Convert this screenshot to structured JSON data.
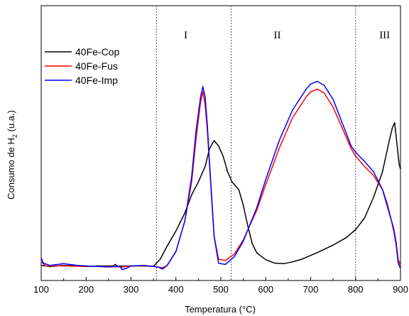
{
  "chart_data": {
    "type": "line",
    "xlabel": "Temperatura (°C)",
    "ylabel": "Consumo de H",
    "ylabel_sub": "2",
    "ylabel_suffix": " (u.a.)",
    "xlim": [
      100,
      900
    ],
    "xticks": [
      100,
      200,
      300,
      400,
      500,
      600,
      700,
      800,
      900
    ],
    "ylim": [
      0,
      100
    ],
    "yticks_labeled": false,
    "grid": false,
    "legend_position": "top-left",
    "regions": [
      {
        "label": "I",
        "x": 440
      },
      {
        "label": "II",
        "x": 640
      },
      {
        "label": "III",
        "x": 875
      }
    ],
    "region_dividers": [
      357,
      523,
      800
    ],
    "series": [
      {
        "name": "40Fe-Cop",
        "color": "#000000",
        "points": [
          [
            100,
            0.6
          ],
          [
            120,
            0.2
          ],
          [
            150,
            0.6
          ],
          [
            180,
            0.4
          ],
          [
            200,
            0.2
          ],
          [
            230,
            0.4
          ],
          [
            260,
            0.4
          ],
          [
            265,
            1.0
          ],
          [
            270,
            0.3
          ],
          [
            300,
            0.4
          ],
          [
            330,
            0.4
          ],
          [
            350,
            0.3
          ],
          [
            365,
            3.0
          ],
          [
            380,
            8.0
          ],
          [
            400,
            14.0
          ],
          [
            420,
            21.0
          ],
          [
            435,
            28.0
          ],
          [
            450,
            33.0
          ],
          [
            465,
            39.0
          ],
          [
            475,
            46.0
          ],
          [
            485,
            49.0
          ],
          [
            495,
            47.0
          ],
          [
            505,
            43.0
          ],
          [
            515,
            37.0
          ],
          [
            525,
            33.0
          ],
          [
            540,
            30.0
          ],
          [
            550,
            24.0
          ],
          [
            560,
            16.0
          ],
          [
            570,
            9.0
          ],
          [
            580,
            5.5
          ],
          [
            600,
            2.8
          ],
          [
            620,
            1.5
          ],
          [
            640,
            1.3
          ],
          [
            660,
            2.0
          ],
          [
            680,
            3.0
          ],
          [
            700,
            4.5
          ],
          [
            720,
            6.0
          ],
          [
            750,
            8.5
          ],
          [
            780,
            11.5
          ],
          [
            800,
            14.5
          ],
          [
            820,
            19.0
          ],
          [
            840,
            27.0
          ],
          [
            860,
            37.0
          ],
          [
            875,
            49.0
          ],
          [
            882,
            54.0
          ],
          [
            887,
            56.0
          ],
          [
            892,
            48.0
          ],
          [
            897,
            40.0
          ],
          [
            900,
            38.0
          ]
        ]
      },
      {
        "name": "40Fe-Fus",
        "color": "#ff0000",
        "points": [
          [
            100,
            2.0
          ],
          [
            110,
            0.5
          ],
          [
            150,
            0.4
          ],
          [
            200,
            0.2
          ],
          [
            250,
            0.2
          ],
          [
            280,
            0.0
          ],
          [
            300,
            0.4
          ],
          [
            330,
            0.4
          ],
          [
            350,
            0.2
          ],
          [
            370,
            -0.3
          ],
          [
            380,
            0.5
          ],
          [
            400,
            6.0
          ],
          [
            420,
            18.0
          ],
          [
            435,
            33.0
          ],
          [
            445,
            50.0
          ],
          [
            455,
            64.0
          ],
          [
            460,
            68.0
          ],
          [
            465,
            63.0
          ],
          [
            470,
            53.0
          ],
          [
            475,
            39.0
          ],
          [
            480,
            25.0
          ],
          [
            485,
            12.0
          ],
          [
            495,
            3.0
          ],
          [
            510,
            2.5
          ],
          [
            530,
            5.0
          ],
          [
            550,
            10.5
          ],
          [
            580,
            22.0
          ],
          [
            600,
            32.0
          ],
          [
            630,
            46.0
          ],
          [
            660,
            58.0
          ],
          [
            690,
            66.0
          ],
          [
            700,
            68.0
          ],
          [
            715,
            69.0
          ],
          [
            730,
            67.5
          ],
          [
            750,
            62.0
          ],
          [
            770,
            54.0
          ],
          [
            790,
            46.0
          ],
          [
            800,
            43.0
          ],
          [
            820,
            39.0
          ],
          [
            840,
            35.5
          ],
          [
            860,
            30.0
          ],
          [
            870,
            25.0
          ],
          [
            880,
            18.0
          ],
          [
            885,
            15.0
          ],
          [
            890,
            10.0
          ],
          [
            895,
            3.0
          ],
          [
            900,
            0.5
          ]
        ]
      },
      {
        "name": "40Fe-Imp",
        "color": "#0000ff",
        "points": [
          [
            100,
            3.5
          ],
          [
            105,
            1.5
          ],
          [
            120,
            0.6
          ],
          [
            150,
            1.3
          ],
          [
            180,
            0.6
          ],
          [
            200,
            0.4
          ],
          [
            250,
            0.0
          ],
          [
            275,
            0.3
          ],
          [
            280,
            -1.0
          ],
          [
            290,
            -0.5
          ],
          [
            300,
            0.4
          ],
          [
            330,
            0.6
          ],
          [
            350,
            0.2
          ],
          [
            360,
            0.0
          ],
          [
            370,
            -0.8
          ],
          [
            380,
            0.5
          ],
          [
            400,
            6.0
          ],
          [
            420,
            18.0
          ],
          [
            435,
            35.0
          ],
          [
            445,
            53.0
          ],
          [
            455,
            66.0
          ],
          [
            460,
            70.0
          ],
          [
            465,
            66.0
          ],
          [
            470,
            55.0
          ],
          [
            475,
            40.0
          ],
          [
            480,
            26.0
          ],
          [
            485,
            12.0
          ],
          [
            495,
            1.5
          ],
          [
            510,
            1.0
          ],
          [
            530,
            4.0
          ],
          [
            550,
            10.0
          ],
          [
            580,
            23.0
          ],
          [
            600,
            34.0
          ],
          [
            630,
            49.0
          ],
          [
            660,
            61.0
          ],
          [
            690,
            69.0
          ],
          [
            700,
            71.0
          ],
          [
            715,
            72.0
          ],
          [
            730,
            70.5
          ],
          [
            750,
            65.0
          ],
          [
            770,
            56.0
          ],
          [
            790,
            47.0
          ],
          [
            800,
            44.5
          ],
          [
            820,
            41.0
          ],
          [
            840,
            37.0
          ],
          [
            860,
            30.0
          ],
          [
            870,
            24.0
          ],
          [
            880,
            18.0
          ],
          [
            885,
            14.0
          ],
          [
            890,
            9.0
          ],
          [
            895,
            1.5
          ],
          [
            900,
            -0.5
          ]
        ]
      }
    ]
  }
}
